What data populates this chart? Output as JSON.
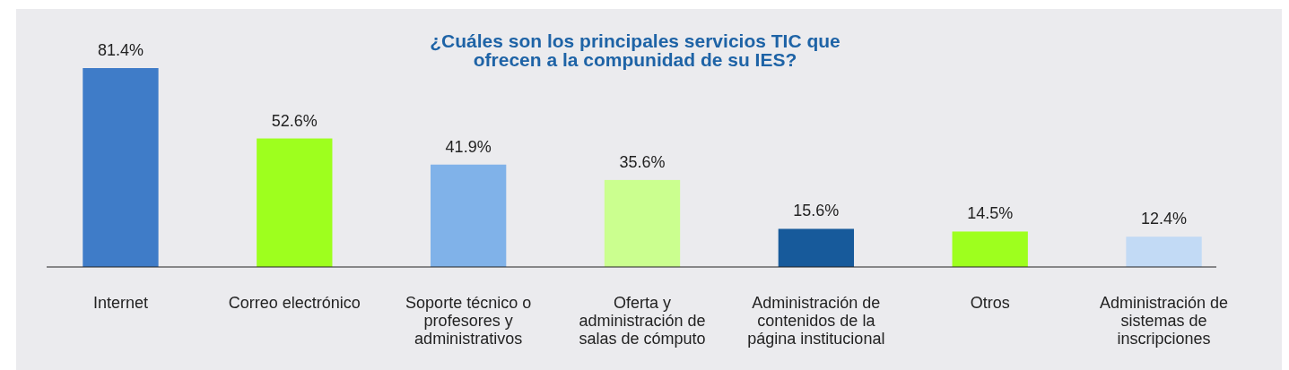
{
  "chart_data": {
    "type": "bar",
    "title": "¿Cuáles son los principales servicios TIC que ofrecen a la compunidad de su IES?",
    "categories": [
      "Internet",
      "Correo electrónico",
      "Soporte técnico o profesores y administrativos",
      "Oferta y administración de salas de cómputo",
      "Administración de contenidos de la página institucional",
      "Otros",
      "Administración de sistemas de inscripciones"
    ],
    "values": [
      81.4,
      52.6,
      41.9,
      35.6,
      15.6,
      14.5,
      12.4
    ],
    "value_labels": [
      "81.4%",
      "52.6%",
      "41.9%",
      "35.6%",
      "15.6%",
      "14.5%",
      "12.4%"
    ],
    "colors": [
      "#3f7cc8",
      "#9eff1e",
      "#80b2e9",
      "#cbff8f",
      "#175a9b",
      "#9eff1e",
      "#c2daf5"
    ]
  }
}
